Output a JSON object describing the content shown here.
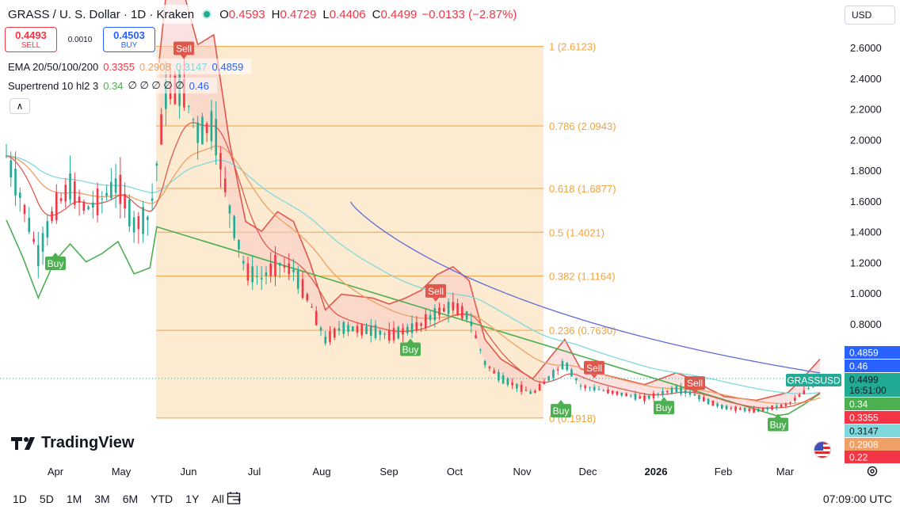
{
  "header": {
    "symbol": "GRASS / U. S. Dollar · 1D · Kraken",
    "o_label": "O",
    "o": "0.4593",
    "h_label": "H",
    "h": "0.4729",
    "l_label": "L",
    "l": "0.4406",
    "c_label": "C",
    "c": "0.4499",
    "change": "−0.0133 (−2.87%)"
  },
  "trade": {
    "sell_price": "0.4493",
    "sell_label": "SELL",
    "spread": "0.0010",
    "buy_price": "0.4503",
    "buy_label": "BUY"
  },
  "indicators": {
    "ema_label": "EMA 20/50/100/200",
    "ema20": "0.3355",
    "ema50": "0.2908",
    "ema100": "0.3147",
    "ema200": "0.4859",
    "st_label": "Supertrend 10 hl2 3",
    "st_up": "0.34",
    "st_na": "∅ ∅ ∅ ∅ ∅",
    "st_down": "0.46"
  },
  "currency_selector": "USD",
  "logo_text": "TradingView",
  "colors": {
    "up": "#22ab94",
    "down": "#f23645",
    "ema20": "#e25a4f",
    "ema50": "#f0a064",
    "ema100": "#7fd9dc",
    "ema200": "#5c6bd9",
    "st_up": "#4caf50",
    "st_down": "#e0584b",
    "fib": "#f2a33a",
    "fib_zone": "#fbe3c2"
  },
  "chart_data": {
    "type": "candlestick",
    "symbol": "GRASSUSD",
    "interval": "1D",
    "x_ticks": [
      "Apr",
      "May",
      "Jun",
      "Jul",
      "Aug",
      "Sep",
      "Oct",
      "Nov",
      "Dec",
      "2026",
      "Feb",
      "Mar"
    ],
    "y_ticks": [
      "2.6000",
      "2.4000",
      "2.2000",
      "2.0000",
      "1.8000",
      "1.6000",
      "1.4000",
      "1.2000",
      "1.0000",
      "0.8000"
    ],
    "ylim": [
      0.22,
      2.72
    ],
    "fib_levels": [
      {
        "ratio": "1",
        "price": 2.6123,
        "label": "1 (2.6123)"
      },
      {
        "ratio": "0.786",
        "price": 2.0943,
        "label": "0.786 (2.0943)"
      },
      {
        "ratio": "0.618",
        "price": 1.6877,
        "label": "0.618 (1.6877)"
      },
      {
        "ratio": "0.5",
        "price": 1.4021,
        "label": "0.5 (1.4021)"
      },
      {
        "ratio": "0.382",
        "price": 1.1164,
        "label": "0.382 (1.1164)"
      },
      {
        "ratio": "0.236",
        "price": 0.763,
        "label": "0.236 (0.7630)"
      },
      {
        "ratio": "0",
        "price": 0.1918,
        "label": "0 (0.1918)"
      }
    ],
    "price_path": [
      [
        "Mar 20",
        1.9
      ],
      [
        "Mar 27",
        1.6
      ],
      [
        "Apr 3",
        1.25
      ],
      [
        "Apr 10",
        1.55
      ],
      [
        "Apr 17",
        1.7
      ],
      [
        "Apr 24",
        1.55
      ],
      [
        "May 1",
        1.62
      ],
      [
        "May 8",
        1.72
      ],
      [
        "May 15",
        1.45
      ],
      [
        "May 22",
        1.5
      ],
      [
        "May 29",
        2.3
      ],
      [
        "Jun 5",
        2.35
      ],
      [
        "Jun 12",
        2.05
      ],
      [
        "Jun 19",
        2.1
      ],
      [
        "Jun 26",
        1.55
      ],
      [
        "Jul 3",
        1.15
      ],
      [
        "Jul 10",
        1.1
      ],
      [
        "Jul 17",
        1.2
      ],
      [
        "Jul 24",
        1.15
      ],
      [
        "Jul 31",
        0.95
      ],
      [
        "Aug 7",
        0.7
      ],
      [
        "Aug 14",
        0.78
      ],
      [
        "Aug 21",
        0.77
      ],
      [
        "Aug 28",
        0.76
      ],
      [
        "Sep 4",
        0.73
      ],
      [
        "Sep 11",
        0.76
      ],
      [
        "Sep 18",
        0.8
      ],
      [
        "Sep 25",
        0.88
      ],
      [
        "Oct 2",
        0.92
      ],
      [
        "Oct 9",
        0.85
      ],
      [
        "Oct 16",
        0.55
      ],
      [
        "Oct 23",
        0.45
      ],
      [
        "Oct 30",
        0.4
      ],
      [
        "Nov 6",
        0.35
      ],
      [
        "Nov 13",
        0.45
      ],
      [
        "Nov 20",
        0.55
      ],
      [
        "Nov 27",
        0.4
      ],
      [
        "Dec 4",
        0.38
      ],
      [
        "Dec 11",
        0.36
      ],
      [
        "Dec 18",
        0.34
      ],
      [
        "Dec 25",
        0.32
      ],
      [
        "Jan 1",
        0.35
      ],
      [
        "Jan 8",
        0.38
      ],
      [
        "Jan 15",
        0.35
      ],
      [
        "Jan 22",
        0.3
      ],
      [
        "Jan 29",
        0.26
      ],
      [
        "Feb 5",
        0.25
      ],
      [
        "Feb 12",
        0.24
      ],
      [
        "Feb 19",
        0.26
      ],
      [
        "Feb 26",
        0.28
      ],
      [
        "Mar 5",
        0.36
      ],
      [
        "Mar 12",
        0.45
      ]
    ],
    "signals": [
      {
        "type": "Sell",
        "date": "May 30",
        "price": 2.6
      },
      {
        "type": "Buy",
        "date": "Apr 1",
        "price": 1.2
      },
      {
        "type": "Sell",
        "date": "Sep 25",
        "price": 1.02
      },
      {
        "type": "Buy",
        "date": "Sep 5",
        "price": 0.64
      },
      {
        "type": "Buy",
        "date": "Nov 18",
        "price": 0.24
      },
      {
        "type": "Sell",
        "date": "Dec 10",
        "price": 0.52
      },
      {
        "type": "Buy",
        "date": "Jan 1",
        "price": 0.26
      },
      {
        "type": "Sell",
        "date": "Jan 17",
        "price": 0.42
      },
      {
        "type": "Buy",
        "date": "Feb 27",
        "price": 0.15
      }
    ],
    "price_labels": [
      {
        "label": "0.4859",
        "value": 0.4859,
        "color": "#2962ff"
      },
      {
        "label": "0.46",
        "value": 0.46,
        "color": "#2962ff"
      },
      {
        "label": "GRASSUSD",
        "value": 0.4499,
        "color": "#22ab94"
      },
      {
        "label": "0.4499",
        "value": 0.4499,
        "color": "#22ab94"
      },
      {
        "label": "16:51:00",
        "value": 0.4499,
        "color": "#22ab94"
      },
      {
        "label": "0.34",
        "value": 0.34,
        "color": "#4caf50"
      },
      {
        "label": "0.3355",
        "value": 0.3355,
        "color": "#f23645"
      },
      {
        "label": "0.3147",
        "value": 0.3147,
        "color": "#7fd9dc"
      },
      {
        "label": "0.2908",
        "value": 0.2908,
        "color": "#f0a064"
      },
      {
        "label": "0.22",
        "value": 0.22,
        "color": "#f23645"
      }
    ]
  },
  "timeframes": [
    "1D",
    "5D",
    "1M",
    "3M",
    "6M",
    "YTD",
    "1Y",
    "All"
  ],
  "clock": "07:09:00 UTC"
}
